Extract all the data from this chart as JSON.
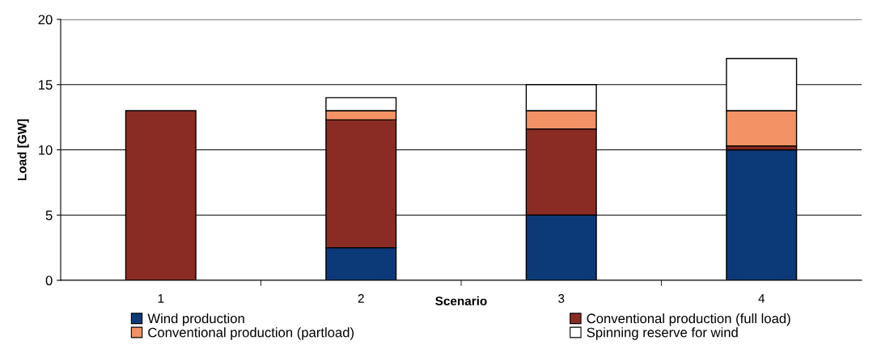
{
  "chart_data": {
    "type": "bar",
    "stacked": true,
    "xlabel": "Scenario",
    "ylabel": "Load [GW]",
    "categories": [
      "1",
      "2",
      "3",
      "4"
    ],
    "series": [
      {
        "name": "Wind production",
        "color": "#0c3a78",
        "values": [
          null,
          2.5,
          5,
          10
        ]
      },
      {
        "name": "Conventional production (full load)",
        "color": "#8b2c24",
        "values": [
          13,
          9.8,
          6.6,
          0.3
        ]
      },
      {
        "name": "Conventional production (partload)",
        "color": "#f39264",
        "values": [
          null,
          0.7,
          1.4,
          2.7
        ]
      },
      {
        "name": "Spinning reserve for wind",
        "color": "#ffffff",
        "values": [
          null,
          1,
          2,
          4
        ]
      }
    ],
    "ylim": [
      0,
      20
    ],
    "yticks": [
      0,
      5,
      10,
      15,
      20
    ],
    "grid": "y",
    "legend": "bottom"
  }
}
